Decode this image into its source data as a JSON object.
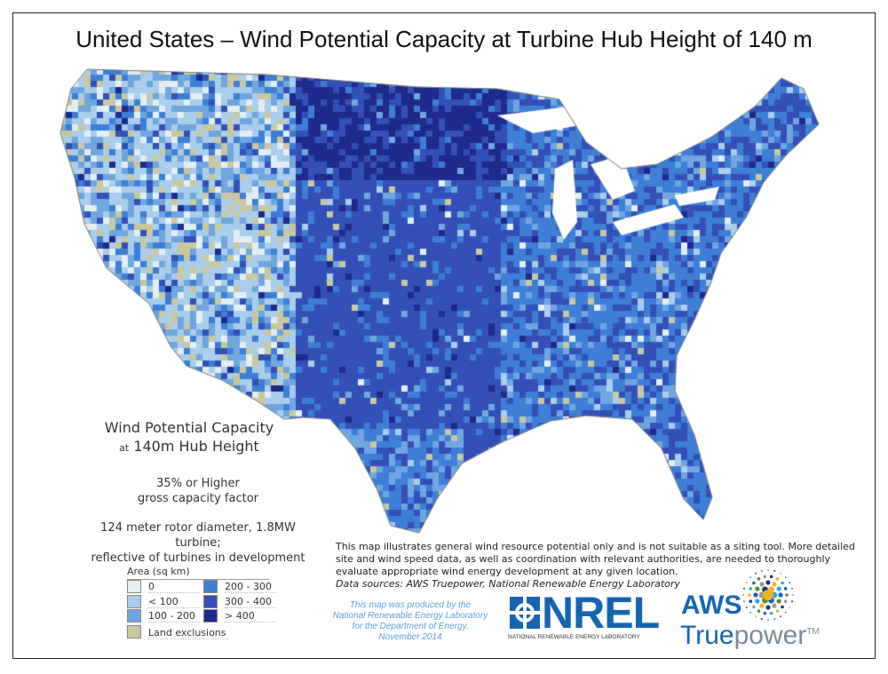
{
  "title": "United States – Wind Potential Capacity at Turbine Hub Height of 140 m",
  "legend": {
    "heading_line1": "Wind Potential Capacity",
    "heading_at": "at",
    "heading_line2": "140m Hub Height",
    "note1_line1": "35% or Higher",
    "note1_line2": "gross capacity factor",
    "note2_line1": "124 meter rotor diameter, 1.8MW turbine;",
    "note2_line2": "reflective of turbines in development",
    "area_title": "Area (sq km)",
    "classes": [
      {
        "label": "0",
        "color": "#e3eef3"
      },
      {
        "label": "< 100",
        "color": "#a9cdea"
      },
      {
        "label": "100 - 200",
        "color": "#6fa6df"
      },
      {
        "label": "200 - 300",
        "color": "#3d7fd6"
      },
      {
        "label": "300 - 400",
        "color": "#3450b8"
      },
      {
        "label": "> 400",
        "color": "#1f2a8c"
      }
    ],
    "exclusion": {
      "label": "Land exclusions",
      "color": "#c9c7a0"
    }
  },
  "disclaimer": "This map illustrates general wind resource potential only and is not suitable as a siting tool. More detailed site and wind speed data, as well as coordination with relevant authorities, are needed to thoroughly evaluate appropriate wind energy development at any given location.",
  "sources": "Data sources: AWS Truepower, National Renewable Energy Laboratory",
  "produced_by": [
    "This map was produced by the",
    "National Renewable Energy Laboratory",
    "for the Department of Energy.",
    "November 2014"
  ],
  "logos": {
    "nrel": "NREL",
    "nrel_sub": "NATIONAL RENEWABLE ENERGY LABORATORY",
    "aws": "AWS",
    "truepower_a": "True",
    "truepower_b": "power",
    "tm": "TM"
  }
}
